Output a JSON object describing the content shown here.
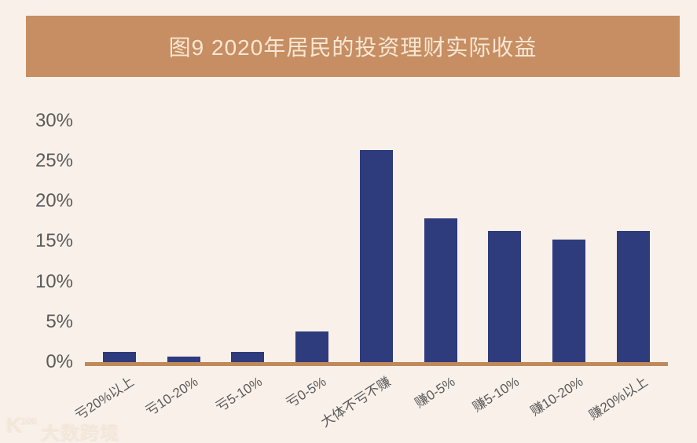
{
  "page": {
    "title_banner": {
      "text": "图9 2020年居民的投资理财实际收益",
      "background_color": "#c68e62",
      "text_color": "#f8e7d4"
    },
    "watermark": {
      "logo_text": "K",
      "logo_superscript": "100",
      "brand_text": "大数跨境"
    }
  },
  "colors": {
    "page_background": "#f9f0e9",
    "bar": "#2e3c7d",
    "axis_line": "#c0895a",
    "tick_text": "#5b5b5b"
  },
  "chart_data": {
    "type": "bar",
    "title": "图9 2020年居民的投资理财实际收益",
    "categories": [
      "亏20%以上",
      "亏10-20%",
      "亏5-10%",
      "亏0-5%",
      "大体不亏不赚",
      "赚0-5%",
      "赚5-10%",
      "赚10-20%",
      "赚20%以上"
    ],
    "values": [
      1.3,
      0.8,
      1.3,
      3.9,
      26.5,
      18.0,
      16.4,
      15.3,
      16.4
    ],
    "unit": "%",
    "xlabel": "",
    "ylabel": "",
    "ylim": [
      0,
      30
    ],
    "ytick_interval": 5,
    "ytick_labels": [
      "0%",
      "5%",
      "10%",
      "15%",
      "20%",
      "25%",
      "30%"
    ],
    "grid": false,
    "legend": false,
    "bar_color": "#2e3c7d",
    "axis_line_color": "#c0895a"
  }
}
